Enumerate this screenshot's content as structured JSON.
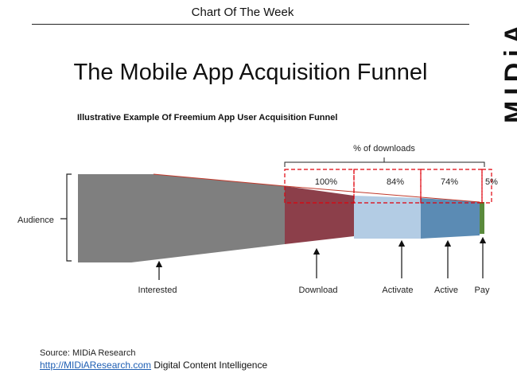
{
  "header": {
    "title": "Chart Of The Week"
  },
  "logo": {
    "text": "MIDiA"
  },
  "main": {
    "title": "The Mobile App Acquisition Funnel",
    "subtitle": "Illustrative Example Of Freemium App User Acquisition Funnel"
  },
  "chart_data": {
    "type": "funnel",
    "side_label": "Audience",
    "bracket_title": "% of downloads",
    "stages": [
      {
        "name": "Interested",
        "pct_label": "",
        "color": "#7f7f7f"
      },
      {
        "name": "Download",
        "pct_label": "100%",
        "color": "#8c3f4a"
      },
      {
        "name": "Activate",
        "pct_label": "84%",
        "color": "#b3cce4"
      },
      {
        "name": "Active",
        "pct_label": "74%",
        "color": "#5b8bb4"
      },
      {
        "name": "Pay",
        "pct_label": "5%",
        "color": "#5a8a3c"
      }
    ]
  },
  "footer": {
    "source": "Source: MIDiA Research",
    "link": "http://MIDiAResearch.com",
    "tagline": " Digital Content Intelligence"
  }
}
